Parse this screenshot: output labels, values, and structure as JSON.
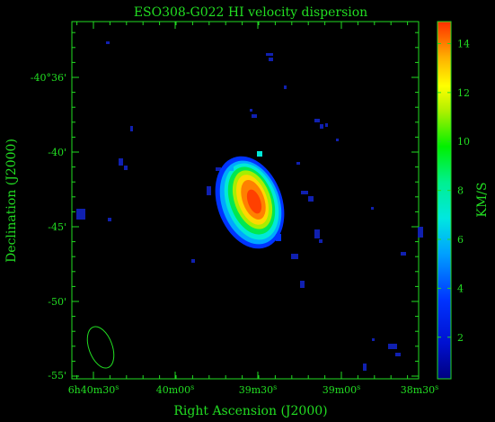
{
  "title": "ESO308-G022  HI velocity dispersion",
  "axis": {
    "x_label": "Right Ascension (J2000)",
    "y_label": "Declination (J2000)"
  },
  "ra_ticks": [
    {
      "hm": "6h40m30",
      "sec": "s"
    },
    {
      "hm": "40m00",
      "sec": "s"
    },
    {
      "hm": "39m30",
      "sec": "s"
    },
    {
      "hm": "39m00",
      "sec": "s"
    },
    {
      "hm": "38m30",
      "sec": "s"
    }
  ],
  "dec_ticks": [
    "-40°36'",
    "-40'",
    "-45'",
    "-50'",
    "-55'"
  ],
  "colorbar": {
    "label": "KM/S",
    "ticks": [
      "2",
      "4",
      "6",
      "8",
      "10",
      "12",
      "14"
    ],
    "tick_values": [
      2,
      4,
      6,
      8,
      10,
      12,
      14
    ],
    "min": 0.3,
    "max": 14.9,
    "colors": [
      "#000080",
      "#0010d0",
      "#0033ff",
      "#00a0ff",
      "#00e8e0",
      "#00f090",
      "#00f000",
      "#b0f000",
      "#ffff00",
      "#ffb000",
      "#ff6000",
      "#ff3000"
    ]
  },
  "colors": {
    "axis": "#22dd22",
    "background": "#000000"
  }
}
